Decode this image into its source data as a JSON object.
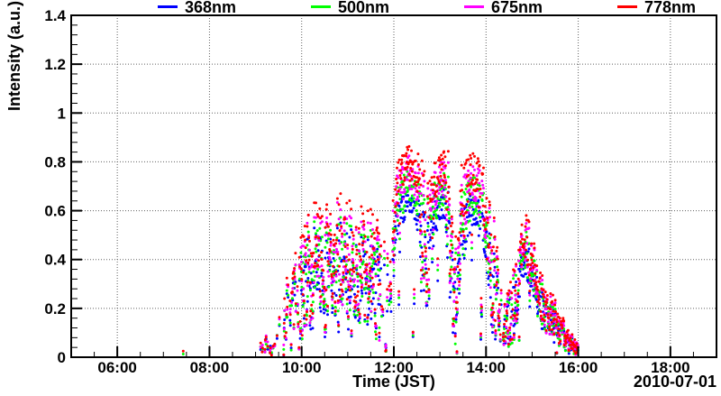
{
  "chart_data": {
    "type": "scatter",
    "title": "",
    "xlabel": "Time (JST)",
    "ylabel": "Intensity (a.u.)",
    "date_label": "2010-07-01",
    "x_axis": {
      "unit": "hour-of-day JST",
      "start_hour": 5,
      "end_hour": 19,
      "major_hours": [
        6,
        8,
        10,
        12,
        14,
        16,
        18
      ],
      "major_labels": [
        "06:00",
        "08:00",
        "10:00",
        "12:00",
        "14:00",
        "16:00",
        "18:00"
      ],
      "minor_step_hours": 0.5,
      "grid": true
    },
    "y_axis": {
      "min": 0,
      "max": 1.4,
      "major_ticks": [
        0,
        0.2,
        0.4,
        0.6,
        0.8,
        1.0,
        1.2,
        1.4
      ],
      "major_labels": [
        "0",
        "0.2",
        "0.4",
        "0.6",
        "0.8",
        "1",
        "1.2",
        "1.4"
      ],
      "minor_step": 0.04,
      "grid": true
    },
    "grid_color": "#606060",
    "frame_color": "#000000",
    "series": [
      {
        "name": "368nm",
        "color": "#0000ff",
        "scale": 0.79
      },
      {
        "name": "500nm",
        "color": "#00ff00",
        "scale": 0.87
      },
      {
        "name": "675nm",
        "color": "#ff00ff",
        "scale": 0.94
      },
      {
        "name": "778nm",
        "color": "#ff0000",
        "scale": 1.0
      }
    ],
    "envelope_note": "Piecewise-linear envelope of the 778nm channel read off the plot: [time_hours, center_intensity, half_spread]; other channels are scaled by series.scale. Dense noisy scatter, ~30 s cadence, data only between ~09:03 and 16:00 JST.",
    "envelope": [
      [
        9.05,
        0.03,
        0.03
      ],
      [
        9.3,
        0.05,
        0.05
      ],
      [
        9.5,
        0.08,
        0.07
      ],
      [
        9.62,
        0.15,
        0.13
      ],
      [
        9.8,
        0.26,
        0.2
      ],
      [
        9.95,
        0.3,
        0.22
      ],
      [
        10.15,
        0.36,
        0.24
      ],
      [
        10.35,
        0.43,
        0.23
      ],
      [
        10.55,
        0.45,
        0.22
      ],
      [
        10.75,
        0.41,
        0.25
      ],
      [
        10.95,
        0.45,
        0.25
      ],
      [
        11.15,
        0.43,
        0.25
      ],
      [
        11.35,
        0.4,
        0.23
      ],
      [
        11.55,
        0.37,
        0.22
      ],
      [
        11.72,
        0.3,
        0.24
      ],
      [
        11.88,
        0.24,
        0.21
      ],
      [
        11.97,
        0.4,
        0.2
      ],
      [
        12.05,
        0.68,
        0.1
      ],
      [
        12.2,
        0.77,
        0.08
      ],
      [
        12.35,
        0.8,
        0.07
      ],
      [
        12.5,
        0.76,
        0.08
      ],
      [
        12.62,
        0.62,
        0.18
      ],
      [
        12.72,
        0.46,
        0.28
      ],
      [
        12.82,
        0.62,
        0.18
      ],
      [
        12.95,
        0.75,
        0.08
      ],
      [
        13.1,
        0.79,
        0.07
      ],
      [
        13.22,
        0.58,
        0.26
      ],
      [
        13.32,
        0.26,
        0.22
      ],
      [
        13.44,
        0.55,
        0.24
      ],
      [
        13.58,
        0.72,
        0.11
      ],
      [
        13.72,
        0.77,
        0.08
      ],
      [
        13.86,
        0.71,
        0.1
      ],
      [
        13.97,
        0.58,
        0.18
      ],
      [
        14.1,
        0.42,
        0.25
      ],
      [
        14.25,
        0.26,
        0.2
      ],
      [
        14.42,
        0.16,
        0.13
      ],
      [
        14.57,
        0.25,
        0.17
      ],
      [
        14.72,
        0.32,
        0.17
      ],
      [
        14.85,
        0.5,
        0.14
      ],
      [
        14.97,
        0.4,
        0.14
      ],
      [
        15.1,
        0.31,
        0.12
      ],
      [
        15.25,
        0.24,
        0.1
      ],
      [
        15.42,
        0.18,
        0.08
      ],
      [
        15.6,
        0.12,
        0.06
      ],
      [
        15.8,
        0.07,
        0.04
      ],
      [
        16.0,
        0.035,
        0.025
      ]
    ],
    "isolated_points": [
      {
        "t": 7.43,
        "series": "778nm",
        "v": 0.025
      },
      {
        "t": 7.43,
        "series": "500nm",
        "v": 0.013
      }
    ],
    "sparse_regions": [
      {
        "t_start": 9.05,
        "t_end": 9.6,
        "keep": 0.2
      },
      {
        "t_start": 9.6,
        "t_end": 9.95,
        "keep": 0.6
      },
      {
        "t_start": 11.7,
        "t_end": 11.97,
        "keep": 0.45
      },
      {
        "t_start": 14.3,
        "t_end": 14.62,
        "keep": 0.5
      }
    ],
    "data_t_start": 9.05,
    "data_t_end": 16.0,
    "time_step_hours": 0.0085,
    "noise_seed": 20100701,
    "series_jitter_frac": 0.12,
    "abs_jitter": 0.012,
    "dropout": {
      "probability": 0.05,
      "floor": 0.0
    },
    "marker_radius_px": 1.5,
    "legend_position": "top"
  },
  "legend": {
    "entries": [
      {
        "label": "368nm",
        "color": "#0000ff"
      },
      {
        "label": "500nm",
        "color": "#00ff00"
      },
      {
        "label": "675nm",
        "color": "#ff00ff"
      },
      {
        "label": "778nm",
        "color": "#ff0000"
      }
    ]
  }
}
